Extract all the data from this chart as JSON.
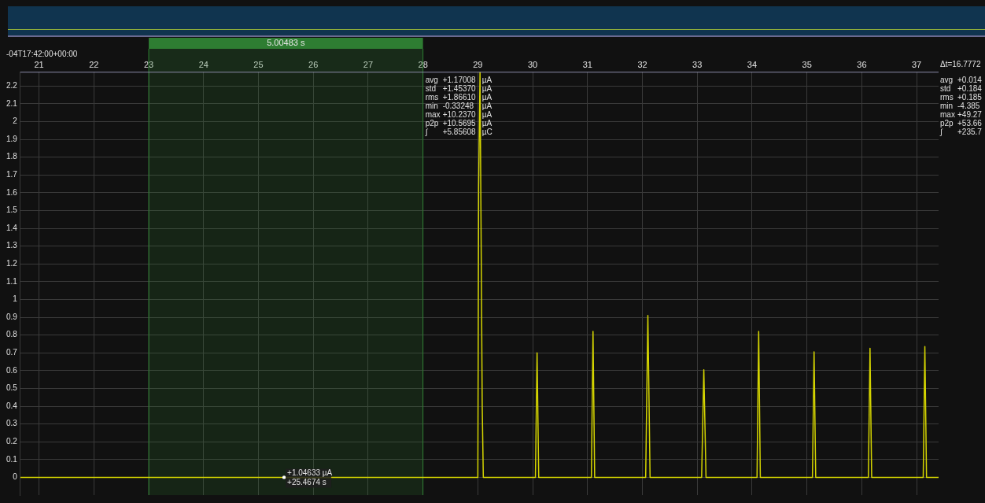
{
  "chart_data": {
    "type": "line",
    "x": [
      20.66,
      29.0,
      29.015,
      29.04,
      29.08,
      29.1,
      30.05,
      30.08,
      30.11,
      31.07,
      31.1,
      31.13,
      32.06,
      32.1,
      32.14,
      33.08,
      33.12,
      33.16,
      34.09,
      34.12,
      34.15,
      35.1,
      35.13,
      35.16,
      36.12,
      36.15,
      36.18,
      37.12,
      37.15,
      37.18,
      37.4
    ],
    "series": [
      {
        "color": "#d4d400",
        "values": [
          0,
          0,
          1.63,
          2.28,
          0.4,
          0,
          0,
          0.7,
          0,
          0,
          0.82,
          0,
          0,
          0.91,
          0,
          0,
          0.605,
          0,
          0,
          0.82,
          0,
          0,
          0.705,
          0,
          0,
          0.725,
          0,
          0,
          0.735,
          0,
          0
        ]
      }
    ],
    "xlim": [
      20.66,
      37.4
    ],
    "xticks": [
      21,
      22,
      23,
      24,
      25,
      26,
      27,
      28,
      29,
      30,
      31,
      32,
      33,
      34,
      35,
      36,
      37
    ],
    "ylim": [
      -0.1,
      2.28
    ],
    "yticks": [
      0,
      0.1,
      0.2,
      0.3,
      0.4,
      0.5,
      0.6,
      0.7,
      0.8,
      0.9,
      1,
      1.1,
      1.2,
      1.3,
      1.4,
      1.5,
      1.6,
      1.7,
      1.8,
      1.9,
      2,
      2.1,
      2.2
    ],
    "grid": true,
    "legend": false,
    "marker": "none",
    "line_style": "solid",
    "bands": [
      {
        "axis": "x",
        "from": 23.0,
        "to": 28.0,
        "label": "5.00483 s",
        "color": "#2e7d32"
      }
    ],
    "annotations": [
      "-04T17:42:00+00:00",
      "avg +1.17008 µA",
      "std +1.45370 µA",
      "rms +1.86610 µA",
      "min -0.33248 µA",
      "max +10.2370 µA",
      "p2p +10.5695 µA",
      "∫ +5.85608 µC",
      "Δt=16.7772",
      "avg +0.014",
      "std +0.184",
      "rms +0.185",
      "min -4.385",
      "max +49.27",
      "p2p +53.66",
      "∫ +235.7",
      {
        "text": "+1.04633 µA",
        "x": 25.4674,
        "y": 0
      },
      {
        "text": "+25.4674 s",
        "x": 25.4674,
        "y": 0
      }
    ]
  }
}
